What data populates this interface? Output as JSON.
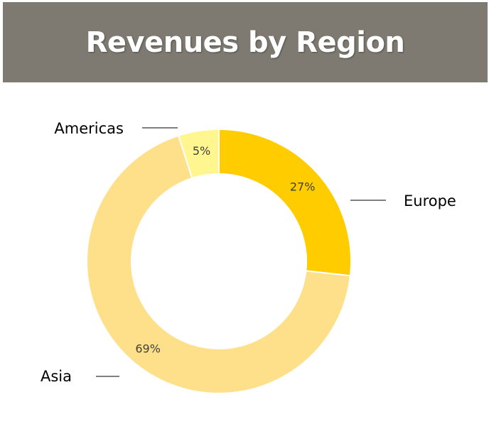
{
  "title": "Revenues by Region",
  "colors": {
    "header_bg": "#7e7a72",
    "europe": "#ffcc00",
    "asia": "#fee08a",
    "americas": "#fff68f"
  },
  "chart_data": {
    "type": "pie",
    "donut": true,
    "title": "Revenues by Region",
    "categories": [
      "Europe",
      "Asia",
      "Americas"
    ],
    "values": [
      27,
      69,
      5
    ],
    "labels": [
      "27%",
      "69%",
      "5%"
    ],
    "colors": [
      "#ffcc00",
      "#fee08a",
      "#fff68f"
    ],
    "start_angle": "12 o'clock",
    "direction": "clockwise",
    "legend": "none (category labels with leader lines)"
  }
}
